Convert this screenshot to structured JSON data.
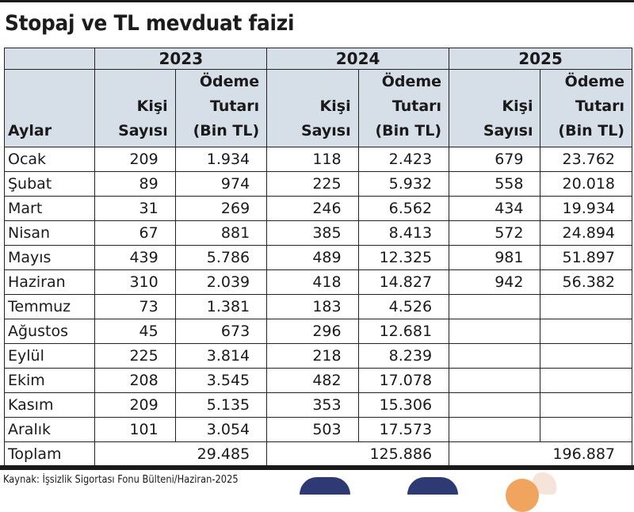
{
  "title": "Stopaj ve TL mevduat faizi",
  "years": [
    "2023",
    "2024",
    "2025"
  ],
  "header": {
    "month": "Aylar",
    "count_line1": "Kişi",
    "count_line2": "Sayısı",
    "amount_line1": "Ödeme",
    "amount_line2": "Tutarı",
    "amount_line3": "(Bin TL)"
  },
  "rows": [
    {
      "month": "Ocak",
      "c2023": "209",
      "a2023": "1.934",
      "c2024": "118",
      "a2024": "2.423",
      "c2025": "679",
      "a2025": "23.762"
    },
    {
      "month": "Şubat",
      "c2023": "89",
      "a2023": "974",
      "c2024": "225",
      "a2024": "5.932",
      "c2025": "558",
      "a2025": "20.018"
    },
    {
      "month": "Mart",
      "c2023": "31",
      "a2023": "269",
      "c2024": "246",
      "a2024": "6.562",
      "c2025": "434",
      "a2025": "19.934"
    },
    {
      "month": "Nisan",
      "c2023": "67",
      "a2023": "881",
      "c2024": "385",
      "a2024": "8.413",
      "c2025": "572",
      "a2025": "24.894"
    },
    {
      "month": "Mayıs",
      "c2023": "439",
      "a2023": "5.786",
      "c2024": "489",
      "a2024": "12.325",
      "c2025": "981",
      "a2025": "51.897"
    },
    {
      "month": "Haziran",
      "c2023": "310",
      "a2023": "2.039",
      "c2024": "418",
      "a2024": "14.827",
      "c2025": "942",
      "a2025": "56.382"
    },
    {
      "month": "Temmuz",
      "c2023": "73",
      "a2023": "1.381",
      "c2024": "183",
      "a2024": "4.526",
      "c2025": "",
      "a2025": ""
    },
    {
      "month": "Ağustos",
      "c2023": "45",
      "a2023": "673",
      "c2024": "296",
      "a2024": "12.681",
      "c2025": "",
      "a2025": ""
    },
    {
      "month": "Eylül",
      "c2023": "225",
      "a2023": "3.814",
      "c2024": "218",
      "a2024": "8.239",
      "c2025": "",
      "a2025": ""
    },
    {
      "month": "Ekim",
      "c2023": "208",
      "a2023": "3.545",
      "c2024": "482",
      "a2024": "17.078",
      "c2025": "",
      "a2025": ""
    },
    {
      "month": "Kasım",
      "c2023": "209",
      "a2023": "5.135",
      "c2024": "353",
      "a2024": "15.306",
      "c2025": "",
      "a2025": ""
    },
    {
      "month": "Aralık",
      "c2023": "101",
      "a2023": "3.054",
      "c2024": "503",
      "a2024": "17.573",
      "c2025": "",
      "a2025": ""
    }
  ],
  "total": {
    "label": "Toplam",
    "a2023": "29.485",
    "a2024": "125.886",
    "a2025": "196.887"
  },
  "source": "Kaynak: İşsizlik Sigortası Fonu Bülteni/Haziran-2025",
  "colors": {
    "header_bg": "#d6dee8",
    "rule": "#1a1a1a",
    "logo": "#2d3a74",
    "coin": "#f0a45e"
  }
}
